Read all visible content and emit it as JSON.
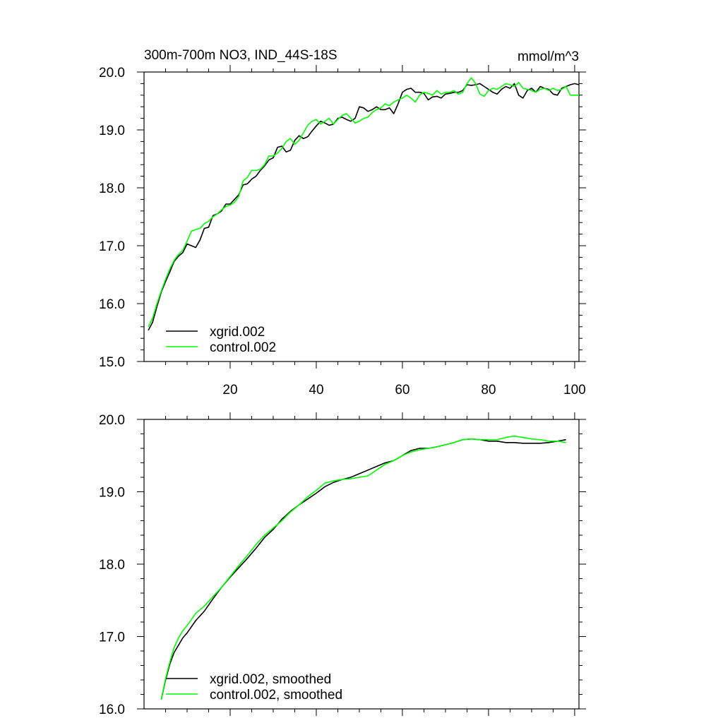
{
  "chart_data": [
    {
      "type": "line",
      "title": "300m-700m NO3, IND_44S-18S",
      "units": "mmol/m^3",
      "xlim": [
        0,
        101
      ],
      "ylim": [
        15.0,
        20.0
      ],
      "x_ticks": [
        20,
        40,
        60,
        80,
        100
      ],
      "x_tick_labels": [
        "20",
        "40",
        "60",
        "80",
        "100"
      ],
      "y_ticks": [
        15.0,
        16.0,
        17.0,
        18.0,
        19.0,
        20.0
      ],
      "y_tick_labels": [
        "15.0",
        "16.0",
        "17.0",
        "18.0",
        "19.0",
        "20.0"
      ],
      "grid": false,
      "legend_position": "bottom-left",
      "x": [
        1,
        2,
        3,
        4,
        5,
        6,
        7,
        8,
        9,
        10,
        11,
        12,
        13,
        14,
        15,
        16,
        17,
        18,
        19,
        20,
        21,
        22,
        23,
        24,
        25,
        26,
        27,
        28,
        29,
        30,
        31,
        32,
        33,
        34,
        35,
        36,
        37,
        38,
        39,
        40,
        41,
        42,
        43,
        44,
        45,
        46,
        47,
        48,
        49,
        50,
        51,
        52,
        53,
        54,
        55,
        56,
        57,
        58,
        59,
        60,
        61,
        62,
        63,
        64,
        65,
        66,
        67,
        68,
        69,
        70,
        71,
        72,
        73,
        74,
        75,
        76,
        77,
        78,
        79,
        80,
        81,
        82,
        83,
        84,
        85,
        86,
        87,
        88,
        89,
        90,
        91,
        92,
        93,
        94,
        95,
        96,
        97,
        98,
        99,
        100,
        101
      ],
      "series": [
        {
          "name": "xgrid.002",
          "color": "#000000",
          "values": [
            15.54,
            15.68,
            15.95,
            16.2,
            16.38,
            16.55,
            16.73,
            16.82,
            16.88,
            17.03,
            17.0,
            16.97,
            17.1,
            17.3,
            17.32,
            17.52,
            17.55,
            17.6,
            17.72,
            17.72,
            17.8,
            17.88,
            18.05,
            18.07,
            18.15,
            18.2,
            18.3,
            18.38,
            18.48,
            18.52,
            18.7,
            18.72,
            18.62,
            18.65,
            18.82,
            18.9,
            18.85,
            18.88,
            18.98,
            19.07,
            19.15,
            19.12,
            19.08,
            19.1,
            19.2,
            19.22,
            19.18,
            19.15,
            19.2,
            19.4,
            19.38,
            19.32,
            19.35,
            19.4,
            19.35,
            19.35,
            19.38,
            19.28,
            19.45,
            19.65,
            19.7,
            19.72,
            19.65,
            19.65,
            19.63,
            19.52,
            19.57,
            19.58,
            19.55,
            19.62,
            19.63,
            19.65,
            19.65,
            19.68,
            19.78,
            19.77,
            19.78,
            19.8,
            19.75,
            19.7,
            19.65,
            19.62,
            19.7,
            19.75,
            19.72,
            19.8,
            19.6,
            19.55,
            19.68,
            19.72,
            19.65,
            19.75,
            19.72,
            19.7,
            19.62,
            19.6,
            19.72,
            19.75,
            19.78,
            19.8,
            19.78
          ]
        },
        {
          "name": "control.002",
          "color": "#00ff00",
          "values": [
            15.6,
            15.75,
            16.0,
            16.22,
            16.42,
            16.6,
            16.75,
            16.85,
            16.92,
            17.08,
            17.25,
            17.28,
            17.3,
            17.38,
            17.42,
            17.5,
            17.55,
            17.62,
            17.68,
            17.7,
            17.75,
            17.85,
            18.12,
            18.18,
            18.3,
            18.3,
            18.32,
            18.4,
            18.55,
            18.55,
            18.6,
            18.68,
            18.8,
            18.85,
            18.75,
            18.82,
            18.95,
            19.08,
            19.15,
            19.18,
            19.1,
            19.15,
            19.2,
            19.1,
            19.18,
            19.25,
            19.28,
            19.2,
            19.12,
            19.15,
            19.2,
            19.22,
            19.3,
            19.35,
            19.38,
            19.45,
            19.42,
            19.48,
            19.52,
            19.55,
            19.6,
            19.55,
            19.48,
            19.6,
            19.65,
            19.63,
            19.6,
            19.68,
            19.62,
            19.65,
            19.65,
            19.68,
            19.62,
            19.65,
            19.8,
            19.9,
            19.8,
            19.62,
            19.58,
            19.68,
            19.72,
            19.7,
            19.75,
            19.8,
            19.78,
            19.75,
            19.82,
            19.72,
            19.7,
            19.68,
            19.65,
            19.7,
            19.72,
            19.68,
            19.72,
            19.68,
            19.7,
            19.75,
            19.6,
            19.6,
            19.6
          ]
        }
      ]
    },
    {
      "type": "line",
      "title": "",
      "xlim": [
        0,
        101
      ],
      "ylim": [
        16.0,
        20.0
      ],
      "x_ticks": [
        20,
        40,
        60,
        80,
        100
      ],
      "y_ticks": [
        16.0,
        17.0,
        18.0,
        19.0,
        20.0
      ],
      "y_tick_labels": [
        "16.0",
        "17.0",
        "18.0",
        "19.0",
        "20.0"
      ],
      "grid": false,
      "legend_position": "bottom-left",
      "x": [
        4,
        5,
        6,
        7,
        8,
        9,
        10,
        12,
        14,
        16,
        18,
        20,
        22,
        24,
        26,
        28,
        30,
        32,
        34,
        36,
        38,
        40,
        42,
        44,
        46,
        48,
        50,
        52,
        54,
        56,
        58,
        60,
        62,
        64,
        66,
        68,
        70,
        72,
        74,
        76,
        78,
        80,
        82,
        84,
        86,
        88,
        90,
        92,
        94,
        96,
        98
      ],
      "series": [
        {
          "name": "xgrid.002, smoothed",
          "color": "#000000",
          "values": [
            16.13,
            16.4,
            16.62,
            16.78,
            16.88,
            16.98,
            17.05,
            17.22,
            17.35,
            17.52,
            17.68,
            17.82,
            17.95,
            18.08,
            18.22,
            18.37,
            18.48,
            18.62,
            18.73,
            18.82,
            18.9,
            18.98,
            19.07,
            19.13,
            19.17,
            19.2,
            19.25,
            19.3,
            19.35,
            19.4,
            19.43,
            19.5,
            19.57,
            19.6,
            19.6,
            19.62,
            19.65,
            19.68,
            19.72,
            19.73,
            19.72,
            19.7,
            19.7,
            19.68,
            19.68,
            19.67,
            19.67,
            19.67,
            19.68,
            19.7,
            19.72
          ]
        },
        {
          "name": "control.002, smoothed",
          "color": "#00ff00",
          "values": [
            16.13,
            16.42,
            16.65,
            16.85,
            16.98,
            17.08,
            17.15,
            17.32,
            17.42,
            17.55,
            17.68,
            17.83,
            17.98,
            18.12,
            18.27,
            18.4,
            18.5,
            18.6,
            18.72,
            18.82,
            18.93,
            19.02,
            19.12,
            19.15,
            19.17,
            19.18,
            19.2,
            19.22,
            19.3,
            19.38,
            19.43,
            19.5,
            19.55,
            19.58,
            19.6,
            19.62,
            19.65,
            19.68,
            19.72,
            19.73,
            19.72,
            19.72,
            19.72,
            19.75,
            19.77,
            19.75,
            19.73,
            19.72,
            19.7,
            19.7,
            19.68
          ]
        }
      ]
    }
  ]
}
